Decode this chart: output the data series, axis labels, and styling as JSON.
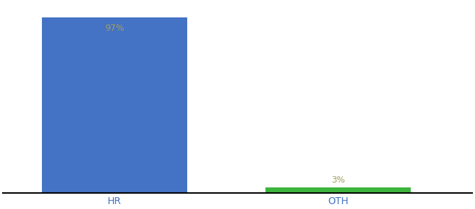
{
  "categories": [
    "HR",
    "OTH"
  ],
  "values": [
    97,
    3
  ],
  "bar_colors": [
    "#4472c4",
    "#3db53d"
  ],
  "label_texts": [
    "97%",
    "3%"
  ],
  "label_color": "#a0a060",
  "ylim": [
    0,
    105
  ],
  "background_color": "#ffffff",
  "axis_line_color": "#000000",
  "tick_label_color": "#4472c4",
  "bar_width": 0.65,
  "figsize": [
    6.8,
    3.0
  ],
  "dpi": 100
}
